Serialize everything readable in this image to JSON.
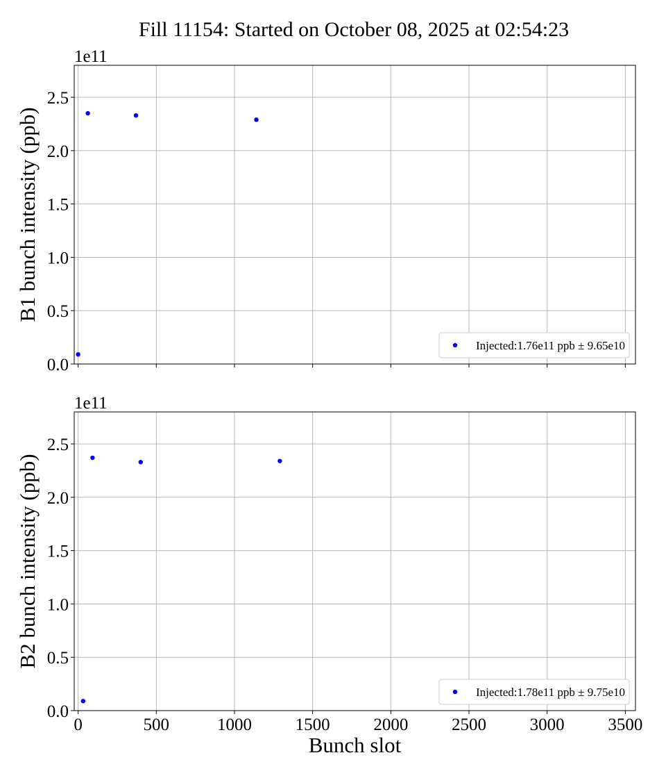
{
  "title": "Fill 11154: Started on October 08, 2025 at 02:54:23",
  "colors": {
    "marker": "#0000ff",
    "grid": "#b0b0b0",
    "axis": "#000000"
  },
  "chart_data": [
    {
      "type": "scatter",
      "ylabel": "B1 bunch intensity (ppb)",
      "xlabel": "",
      "offset_label": "1e11",
      "xlim": [
        -25,
        3565
      ],
      "ylim": [
        0,
        2.8
      ],
      "xticks": [
        0,
        500,
        1000,
        1500,
        2000,
        2500,
        3000,
        3500
      ],
      "yticks": [
        0.0,
        0.5,
        1.0,
        1.5,
        2.0,
        2.5
      ],
      "ytick_labels": [
        "0.0",
        "0.5",
        "1.0",
        "1.5",
        "2.0",
        "2.5"
      ],
      "grid": true,
      "legend_position": "lower-right",
      "series": [
        {
          "name": "Injected:1.76e11 ppb ± 9.65e10",
          "color": "#0000ff",
          "points": [
            [
              0,
              0.09
            ],
            [
              62,
              2.35
            ],
            [
              370,
              2.33
            ],
            [
              1140,
              2.29
            ]
          ]
        }
      ]
    },
    {
      "type": "scatter",
      "ylabel": "B2 bunch intensity (ppb)",
      "xlabel": "Bunch slot",
      "offset_label": "1e11",
      "xlim": [
        -25,
        3565
      ],
      "ylim": [
        0,
        2.8
      ],
      "xticks": [
        0,
        500,
        1000,
        1500,
        2000,
        2500,
        3000,
        3500
      ],
      "xtick_labels": [
        "0",
        "500",
        "1000",
        "1500",
        "2000",
        "2500",
        "3000",
        "3500"
      ],
      "yticks": [
        0.0,
        0.5,
        1.0,
        1.5,
        2.0,
        2.5
      ],
      "ytick_labels": [
        "0.0",
        "0.5",
        "1.0",
        "1.5",
        "2.0",
        "2.5"
      ],
      "grid": true,
      "legend_position": "lower-right",
      "series": [
        {
          "name": "Injected:1.78e11 ppb ± 9.75e10",
          "color": "#0000ff",
          "points": [
            [
              32,
              0.09
            ],
            [
              92,
              2.37
            ],
            [
              400,
              2.33
            ],
            [
              1290,
              2.34
            ]
          ]
        }
      ]
    }
  ]
}
